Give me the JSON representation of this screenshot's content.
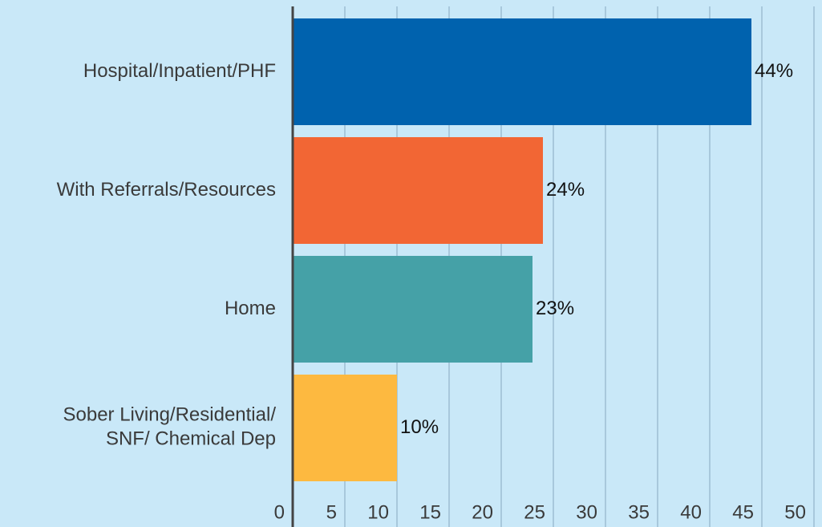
{
  "chart_data": {
    "type": "bar",
    "orientation": "horizontal",
    "categories": [
      "Hospital/Inpatient/PHF",
      "With Referrals/Resources",
      "Home",
      "Sober Living/Residential/\nSNF/ Chemical Dep"
    ],
    "values": [
      44,
      24,
      23,
      10
    ],
    "value_labels": [
      "44%",
      "24%",
      "23%",
      "10%"
    ],
    "colors": [
      "#0062ae",
      "#f26634",
      "#45a1a7",
      "#fdb940"
    ],
    "xlim": [
      0,
      50
    ],
    "xticks": [
      0,
      5,
      10,
      15,
      20,
      25,
      30,
      35,
      40,
      45,
      50
    ],
    "grid": true
  }
}
